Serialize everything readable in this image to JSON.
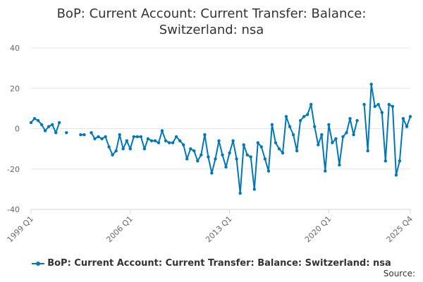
{
  "title_line1": "BoP: Current Account: Current Transfer: Balance:",
  "title_line2": "Switzerland: nsa",
  "legend_label": "BoP: Current Account: Current Transfer: Balance: Switzerland: nsa",
  "source_label": "Source:",
  "series_color": "#0077b5",
  "chart_data": {
    "type": "line",
    "title": "BoP: Current Account: Current Transfer: Balance: Switzerland: nsa",
    "x_start": "1999 Q1",
    "x_tick_labels": [
      "1999 Q1",
      "2006 Q1",
      "2013 Q1",
      "2020 Q1",
      "2025 Q4"
    ],
    "ylim": [
      -40,
      40
    ],
    "y_ticks": [
      -40,
      -20,
      0,
      20,
      40
    ],
    "grid": true,
    "legend_position": "bottom",
    "series": [
      {
        "name": "BoP: Current Account: Current Transfer: Balance: Switzerland: nsa",
        "values": [
          3,
          5,
          4,
          2,
          -1,
          1,
          2,
          -2,
          3,
          null,
          -2,
          null,
          null,
          null,
          -3,
          -3,
          null,
          -2,
          -5,
          -4,
          -5,
          -4,
          -9,
          -13,
          -11,
          -3,
          -10,
          -6,
          -10,
          -4,
          -4,
          -4,
          -10,
          -5,
          -6,
          -6,
          -7,
          -1,
          -6,
          -7,
          -7,
          -4,
          -6,
          -8,
          -15,
          -10,
          -11,
          -16,
          -13,
          -3,
          -14,
          -22,
          -15,
          -6,
          -13,
          -19,
          -12,
          -6,
          -15,
          -32,
          -8,
          -13,
          -14,
          -30,
          -7,
          -9,
          -15,
          -21,
          2,
          -7,
          -10,
          -12,
          6,
          1,
          -3,
          -11,
          4,
          6,
          7,
          12,
          1,
          -8,
          -3,
          -21,
          2,
          -7,
          -5,
          -18,
          -4,
          -2,
          5,
          -3,
          4,
          null,
          12,
          -11,
          22,
          11,
          12,
          8,
          -16,
          12,
          11,
          -23,
          -16,
          5,
          1,
          6
        ]
      }
    ]
  }
}
